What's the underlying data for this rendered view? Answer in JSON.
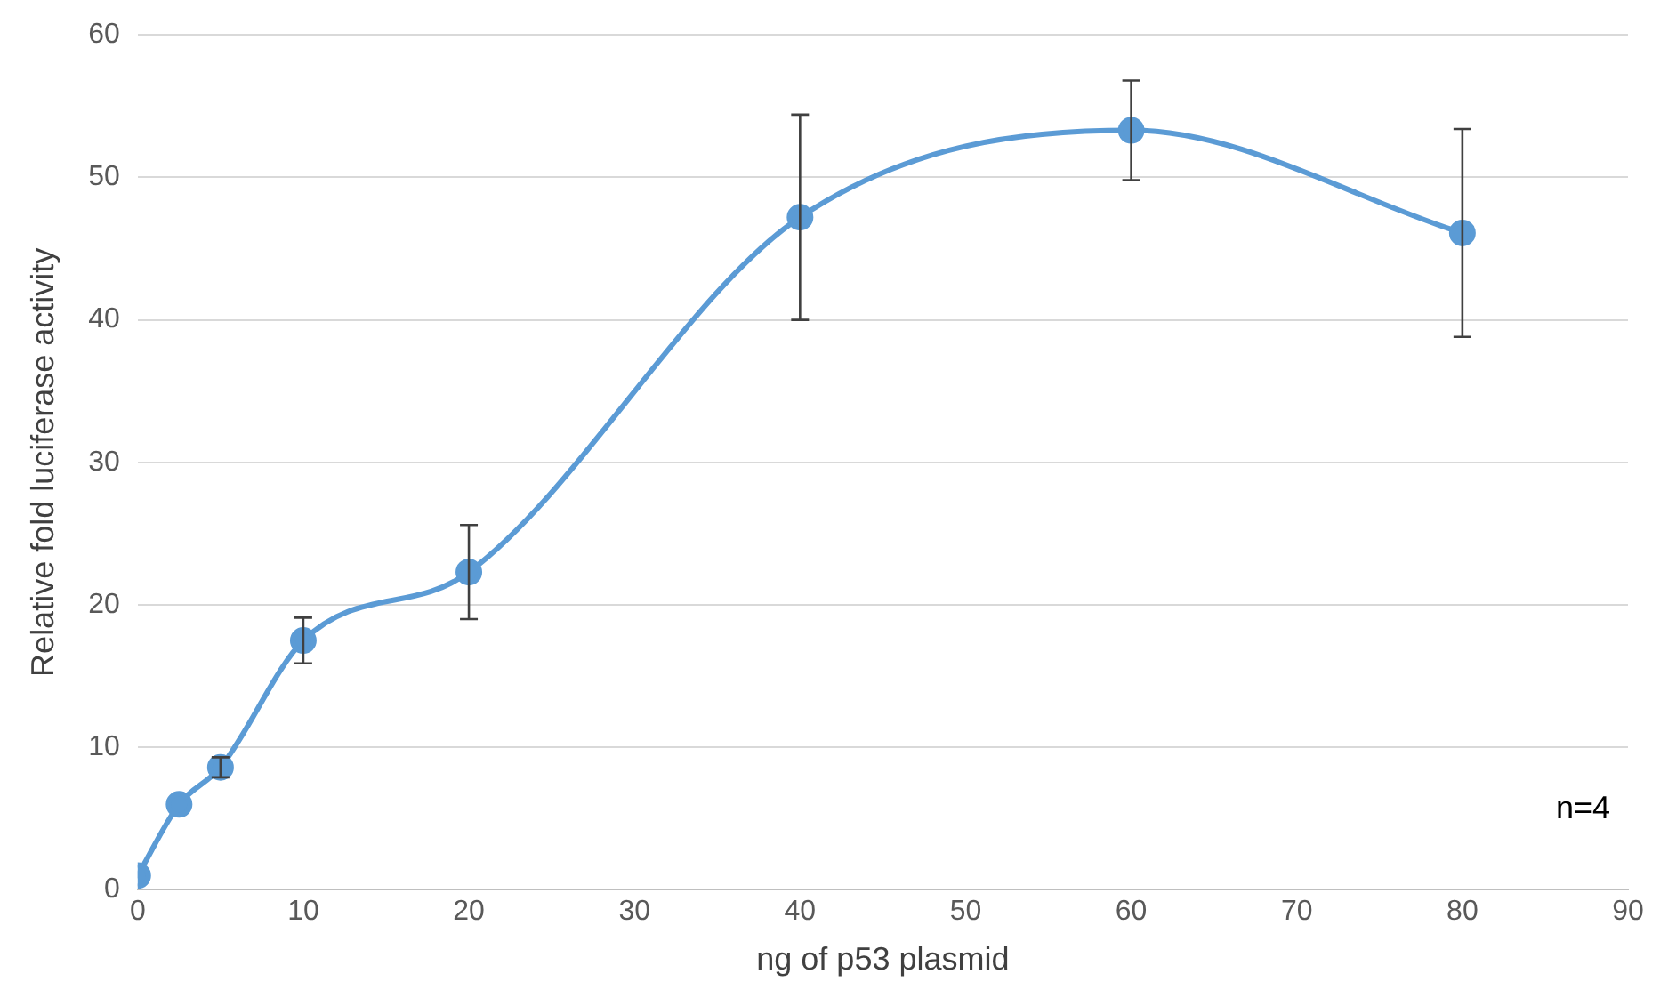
{
  "chart_data": {
    "type": "line",
    "xlabel": "ng of p53 plasmid",
    "ylabel": "Relative fold luciferase activity",
    "x": [
      0,
      2.5,
      5,
      10,
      20,
      40,
      60,
      80
    ],
    "series": [
      {
        "color": "#5b9bd5",
        "values": [
          1,
          6,
          8.6,
          17.5,
          22.3,
          47.2,
          53.3,
          46.1
        ],
        "errors": [
          null,
          null,
          0.7,
          1.6,
          3.3,
          7.2,
          3.5,
          7.3
        ]
      }
    ],
    "xlim": [
      0,
      90
    ],
    "xticks": [
      0,
      10,
      20,
      30,
      40,
      50,
      60,
      70,
      80,
      90
    ],
    "ylim": [
      0,
      60
    ],
    "yticks": [
      0,
      10,
      20,
      30,
      40,
      50,
      60
    ],
    "grid": "y",
    "legend": false,
    "marker": "circle",
    "line_style": "solid",
    "annotations": [
      "n=4"
    ]
  }
}
